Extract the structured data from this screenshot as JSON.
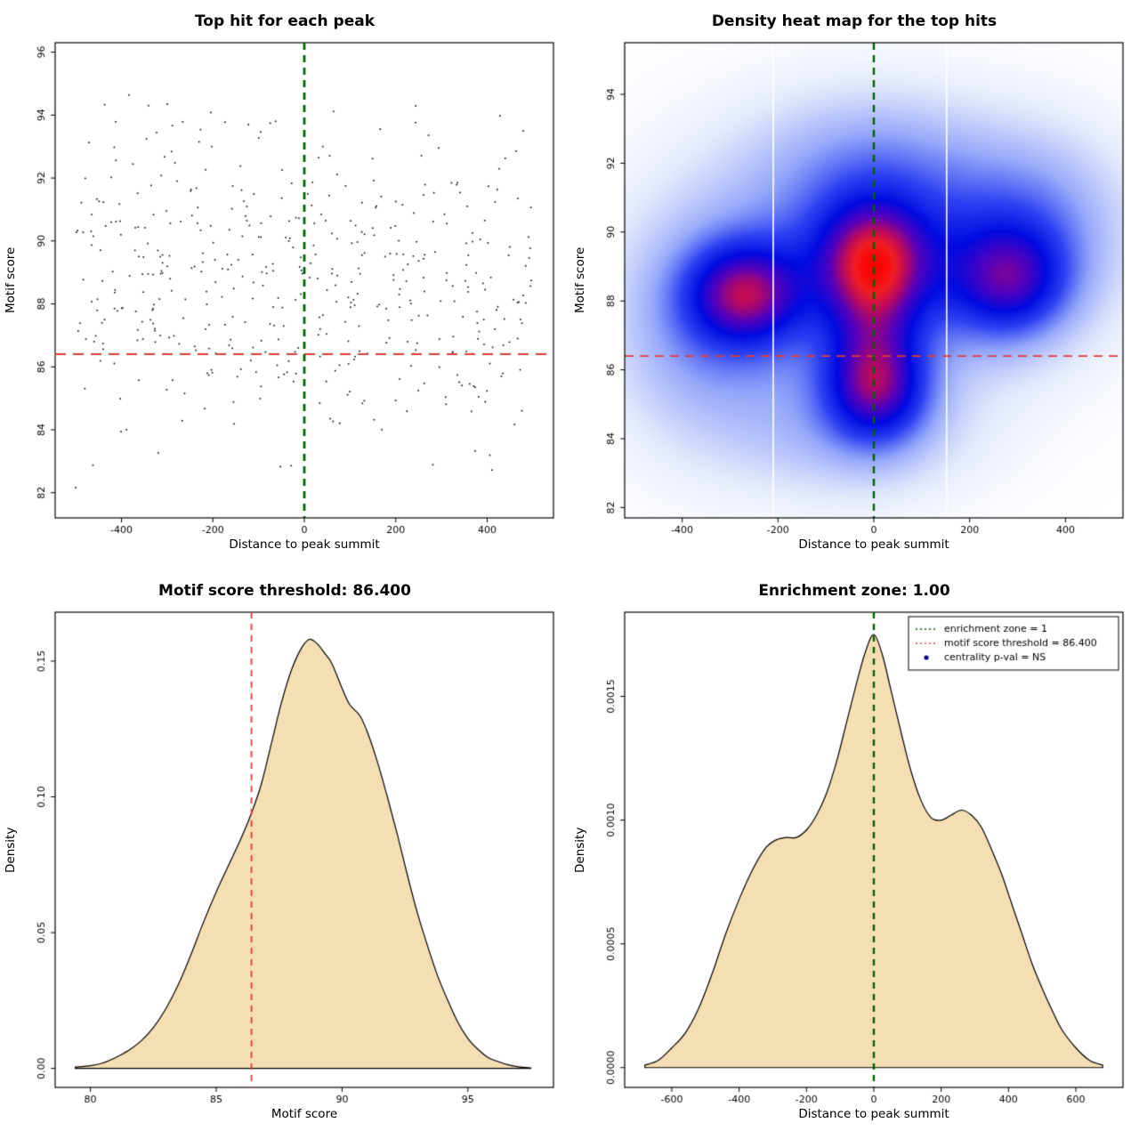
{
  "colors": {
    "green_line": "#006400",
    "red_line": "#e03c3c",
    "area_fill": "#f5deb3",
    "curve_stroke": "#000000",
    "point_color": "#000000",
    "legend_point": "#00008b"
  },
  "chart_data": [
    {
      "type": "scatter",
      "title": "Top hit for each peak",
      "xlabel": "Distance to peak summit",
      "ylabel": "Motif score",
      "xlim": [
        -545,
        545
      ],
      "ylim": [
        81.2,
        96.3
      ],
      "xticks": {
        "values": [
          -400,
          -200,
          0,
          200,
          400
        ],
        "labels": [
          "-400",
          "-200",
          "0",
          "200",
          "400"
        ]
      },
      "yticks": {
        "values": [
          82,
          84,
          86,
          88,
          90,
          92,
          94,
          96
        ],
        "labels": [
          "82",
          "84",
          "86",
          "88",
          "90",
          "92",
          "94",
          "96"
        ]
      },
      "vline": 0,
      "hline": 86.4,
      "points_spec": {
        "n": 480,
        "seed": 42,
        "x_min": -500,
        "x_max": 500,
        "y_mean": 88.7,
        "y_sd": 2.55,
        "y_min": 81.6,
        "y_max": 95.9
      }
    },
    {
      "type": "heatmap",
      "title": "Density heat map for the top hits",
      "xlabel": "Distance to peak summit",
      "ylabel": "Motif score",
      "xlim": [
        -520,
        520
      ],
      "ylim": [
        81.7,
        95.5
      ],
      "xticks": {
        "values": [
          -400,
          -200,
          0,
          200,
          400
        ],
        "labels": [
          "-400",
          "-200",
          "0",
          "200",
          "400"
        ]
      },
      "yticks": {
        "values": [
          82,
          84,
          86,
          88,
          90,
          92,
          94
        ],
        "labels": [
          "82",
          "84",
          "86",
          "88",
          "90",
          "92",
          "94"
        ]
      },
      "vline": 0,
      "hline": 86.4,
      "gap_lines_x": [
        -210,
        152
      ],
      "gamma": 0.7,
      "kernels": [
        [
          1.0,
          0,
          89.2,
          78,
          1.15
        ],
        [
          1.0,
          -270,
          88.2,
          78,
          0.95
        ],
        [
          0.8,
          285,
          88.6,
          80,
          1.05
        ],
        [
          0.95,
          5,
          85.5,
          72,
          1.05
        ],
        [
          0.45,
          0,
          87.4,
          60,
          1.6
        ],
        [
          0.38,
          -120,
          88.8,
          190,
          2.3
        ],
        [
          0.4,
          150,
          89.2,
          180,
          2.0
        ],
        [
          0.3,
          -350,
          87.2,
          120,
          2.0
        ],
        [
          0.28,
          330,
          90.3,
          120,
          1.6
        ],
        [
          0.22,
          0,
          92.0,
          150,
          1.3
        ],
        [
          0.2,
          -60,
          84.2,
          160,
          1.2
        ]
      ],
      "colormap": [
        [
          0.0,
          255,
          255,
          255
        ],
        [
          0.1,
          228,
          234,
          252
        ],
        [
          0.28,
          150,
          168,
          250
        ],
        [
          0.45,
          45,
          65,
          242
        ],
        [
          0.6,
          0,
          10,
          225
        ],
        [
          0.74,
          90,
          0,
          185
        ],
        [
          0.85,
          190,
          10,
          90
        ],
        [
          0.93,
          240,
          30,
          35
        ],
        [
          1.0,
          255,
          0,
          0
        ]
      ]
    },
    {
      "type": "area",
      "subtype": "density",
      "title": "Motif score threshold: 86.400",
      "xlabel": "Motif score",
      "ylabel": "Density",
      "xlim": [
        78.6,
        98.4
      ],
      "ylim": [
        -0.007,
        0.168
      ],
      "xticks": {
        "values": [
          80,
          85,
          90,
          95
        ],
        "labels": [
          "80",
          "85",
          "90",
          "95"
        ]
      },
      "yticks": {
        "values": [
          0,
          0.05,
          0.1,
          0.15
        ],
        "labels": [
          "0.00",
          "0.05",
          "0.10",
          "0.15"
        ]
      },
      "vline": 86.4,
      "vline_color": "red",
      "curve": [
        [
          79.4,
          0.0005
        ],
        [
          80,
          0.001
        ],
        [
          80.5,
          0.002
        ],
        [
          81,
          0.004
        ],
        [
          81.5,
          0.0065
        ],
        [
          82,
          0.01
        ],
        [
          82.5,
          0.015
        ],
        [
          83,
          0.022
        ],
        [
          83.5,
          0.031
        ],
        [
          84,
          0.042
        ],
        [
          84.5,
          0.054
        ],
        [
          85,
          0.065
        ],
        [
          85.5,
          0.075
        ],
        [
          86,
          0.085
        ],
        [
          86.4,
          0.094
        ],
        [
          86.8,
          0.105
        ],
        [
          87.2,
          0.12
        ],
        [
          87.6,
          0.135
        ],
        [
          88,
          0.147
        ],
        [
          88.4,
          0.155
        ],
        [
          88.7,
          0.158
        ],
        [
          89,
          0.1565
        ],
        [
          89.3,
          0.153
        ],
        [
          89.6,
          0.149
        ],
        [
          90,
          0.14
        ],
        [
          90.3,
          0.134
        ],
        [
          90.7,
          0.13
        ],
        [
          91,
          0.124
        ],
        [
          91.4,
          0.113
        ],
        [
          91.8,
          0.1
        ],
        [
          92.2,
          0.086
        ],
        [
          92.6,
          0.071
        ],
        [
          93,
          0.057
        ],
        [
          93.4,
          0.045
        ],
        [
          93.8,
          0.034
        ],
        [
          94.2,
          0.025
        ],
        [
          94.6,
          0.017
        ],
        [
          95,
          0.011
        ],
        [
          95.4,
          0.007
        ],
        [
          95.8,
          0.004
        ],
        [
          96.2,
          0.0025
        ],
        [
          96.6,
          0.0013
        ],
        [
          97,
          0.0006
        ],
        [
          97.5,
          0.0002
        ]
      ]
    },
    {
      "type": "area",
      "subtype": "density",
      "title": "Enrichment zone: 1.00",
      "xlabel": "Distance to peak summit",
      "ylabel": "Density",
      "xlim": [
        -740,
        740
      ],
      "ylim": [
        -8e-05,
        0.00184
      ],
      "xticks": {
        "values": [
          -600,
          -400,
          -200,
          0,
          200,
          400,
          600
        ],
        "labels": [
          "-600",
          "-400",
          "-200",
          "0",
          "200",
          "400",
          "600"
        ]
      },
      "yticks": {
        "values": [
          0,
          0.0005,
          0.001,
          0.0015
        ],
        "labels": [
          "0.0000",
          "0.0005",
          "0.0010",
          "0.0015"
        ]
      },
      "vline": 0,
      "vline_color": "green",
      "curve": [
        [
          -680,
          1e-05
        ],
        [
          -640,
          3e-05
        ],
        [
          -600,
          8e-05
        ],
        [
          -560,
          0.00014
        ],
        [
          -520,
          0.00024
        ],
        [
          -480,
          0.00038
        ],
        [
          -440,
          0.00054
        ],
        [
          -400,
          0.00068
        ],
        [
          -360,
          0.0008
        ],
        [
          -320,
          0.00089
        ],
        [
          -290,
          0.00092
        ],
        [
          -260,
          0.00093
        ],
        [
          -230,
          0.00093
        ],
        [
          -200,
          0.00096
        ],
        [
          -170,
          0.00102
        ],
        [
          -140,
          0.00111
        ],
        [
          -110,
          0.00124
        ],
        [
          -80,
          0.0014
        ],
        [
          -50,
          0.00156
        ],
        [
          -25,
          0.00168
        ],
        [
          0,
          0.00175
        ],
        [
          25,
          0.00167
        ],
        [
          50,
          0.00153
        ],
        [
          80,
          0.00136
        ],
        [
          110,
          0.0012
        ],
        [
          140,
          0.00108
        ],
        [
          170,
          0.00101
        ],
        [
          200,
          0.001
        ],
        [
          230,
          0.00102
        ],
        [
          260,
          0.00104
        ],
        [
          290,
          0.00102
        ],
        [
          320,
          0.00097
        ],
        [
          350,
          0.00088
        ],
        [
          380,
          0.00078
        ],
        [
          410,
          0.00066
        ],
        [
          440,
          0.00054
        ],
        [
          470,
          0.00042
        ],
        [
          500,
          0.00032
        ],
        [
          530,
          0.00023
        ],
        [
          560,
          0.00015
        ],
        [
          600,
          8e-05
        ],
        [
          640,
          3e-05
        ],
        [
          680,
          1e-05
        ]
      ],
      "legend": {
        "entries": [
          {
            "type": "line",
            "color": "#006400",
            "label": "enrichment zone = 1"
          },
          {
            "type": "line",
            "color": "#e03c3c",
            "label": "motif score threshold = 86.400"
          },
          {
            "type": "point",
            "color": "#00008b",
            "label": "centrality p-val = NS"
          }
        ]
      }
    }
  ]
}
